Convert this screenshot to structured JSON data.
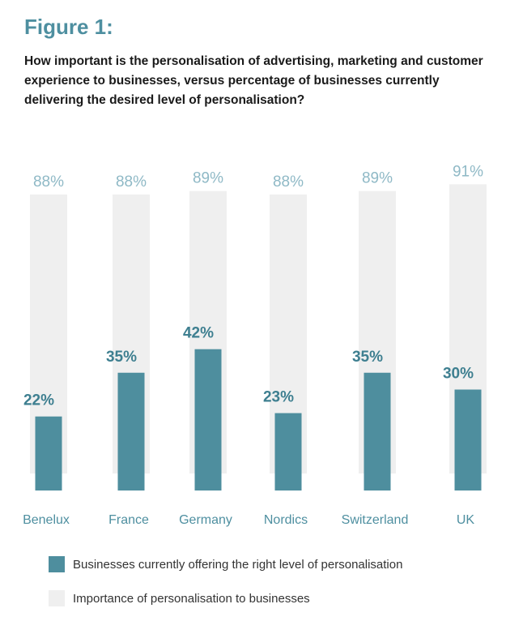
{
  "figure_label": "Figure 1:",
  "question": "How important is the personalisation of advertising, marketing and customer experience to businesses, versus percentage of businesses currently delivering the desired level of personalisation?",
  "colors": {
    "title": "#4e8fa0",
    "offering_bar": "#4e8e9e",
    "importance_bar": "#efefef",
    "importance_label": "#8fb9c6",
    "offering_label": "#3e7f90",
    "category_label": "#4e8fa0"
  },
  "chart_data": {
    "type": "bar",
    "title": "",
    "categories": [
      "Benelux",
      "France",
      "Germany",
      "Nordics",
      "Switzerland",
      "UK"
    ],
    "series": [
      {
        "name": "Importance of personalisation to businesses",
        "values": [
          88,
          88,
          89,
          88,
          89,
          91
        ],
        "labels": [
          "88%",
          "88%",
          "89%",
          "88%",
          "89%",
          "91%"
        ]
      },
      {
        "name": "Businesses currently offering the right level of personalisation",
        "values": [
          22,
          35,
          42,
          23,
          35,
          30
        ],
        "labels": [
          "22%",
          "35%",
          "42%",
          "23%",
          "35%",
          "30%"
        ]
      }
    ],
    "unit": "%",
    "ylim": [
      0,
      100
    ],
    "grid": false,
    "legend": "bottom"
  },
  "legend": [
    {
      "label": "Businesses currently offering the right level of personalisation",
      "color": "#4e8e9e"
    },
    {
      "label": "Importance of personalisation to businesses",
      "color": "#efefef"
    }
  ]
}
